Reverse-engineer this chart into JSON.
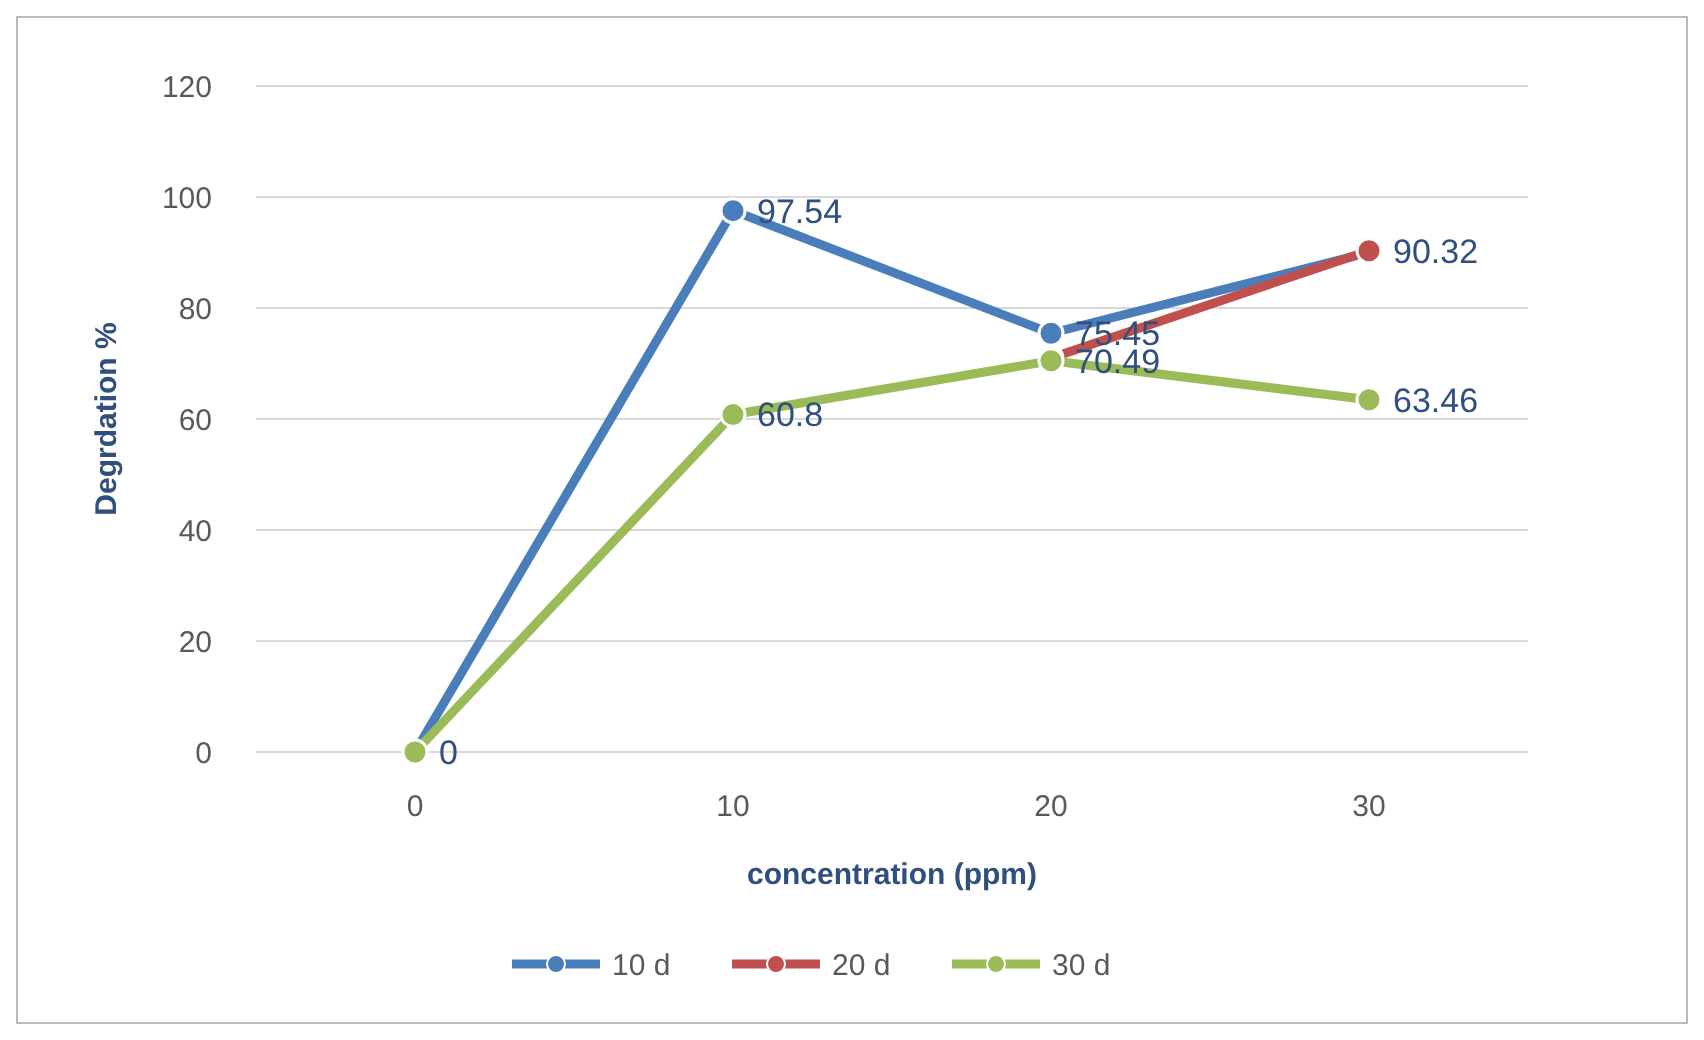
{
  "chart_data": {
    "type": "line",
    "xlabel": "concentration (ppm)",
    "ylabel": "Degrdation %",
    "categories": [
      "0",
      "10",
      "20",
      "30"
    ],
    "series": [
      {
        "name": "10 d",
        "color": "#4a7ebb",
        "values": [
          0,
          97.54,
          75.45,
          90
        ],
        "value_labels": [
          "0",
          "97.54",
          "75.45",
          null
        ]
      },
      {
        "name": "20 d",
        "color": "#c0504d",
        "values": [
          null,
          null,
          71,
          90.32
        ],
        "value_labels": [
          null,
          null,
          null,
          "90.32"
        ]
      },
      {
        "name": "30 d",
        "color": "#9bbb59",
        "values": [
          0,
          60.8,
          70.49,
          63.46
        ],
        "value_labels": [
          null,
          "60.8",
          "70.49",
          "63.46"
        ]
      }
    ],
    "ylim": [
      0,
      120
    ],
    "yticks": [
      0,
      20,
      40,
      60,
      80,
      100,
      120
    ],
    "grid": "y",
    "legend": "bottom",
    "marker": "circle",
    "line_style": "solid"
  }
}
